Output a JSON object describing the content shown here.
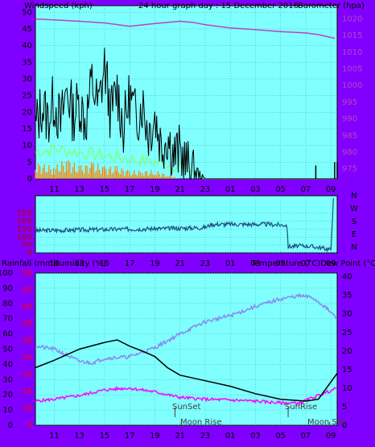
{
  "colors": {
    "frame": "#8000ff",
    "plot_bg": "#80ffff",
    "grid": "#3f9fa8",
    "gust": "#000000",
    "avg_wind": "#80ff80",
    "orange": "#ff8000",
    "pressure": "#c040c0",
    "direction": "#205080",
    "temperature": "#000000",
    "humidity": "#8888ee",
    "dewpoint": "#ff00ff",
    "rain_axis_text": "#ff0000",
    "annotation": "#404040"
  },
  "labels": {
    "top_left": "Windspeed (kph)",
    "top_center": "24 hour graph day : 15 December 2016",
    "top_right": "Barometer (hpa)",
    "bottom_left_1": "Rainfall (mm)",
    "bottom_left_2": "Humidity (%)",
    "bottom_right": "Temperature (°C)Dew Point (°C)",
    "sunset": "SunSet",
    "moonrise": "Moon Rise",
    "sunrise": "SunRise",
    "moonset": "Moon Set"
  },
  "chart_data": [
    {
      "type": "line",
      "title": "24 hour graph day : 15 December 2016",
      "x_ticks": [
        "11",
        "13",
        "15",
        "17",
        "19",
        "21",
        "23",
        "01",
        "03",
        "05",
        "07",
        "09"
      ],
      "x_range_hours": [
        9.5,
        33.5
      ],
      "y_left_label": "Windspeed (kph)",
      "y_left_ticks": [
        0,
        5,
        10,
        15,
        20,
        25,
        30,
        35,
        40,
        45,
        50
      ],
      "y_left_range": [
        0,
        52
      ],
      "y_right_label": "Barometer (hpa)",
      "y_right_ticks": [
        975,
        980,
        985,
        990,
        995,
        1000,
        1005,
        1010,
        1015,
        1020
      ],
      "y_right_range": [
        972,
        1024
      ],
      "series": [
        {
          "key": "pressure",
          "values_hpa": [
            [
              9.5,
              1020
            ],
            [
              11,
              1019.7
            ],
            [
              13,
              1019.3
            ],
            [
              15,
              1018.8
            ],
            [
              17,
              1017.8
            ],
            [
              19,
              1018.6
            ],
            [
              21,
              1019.3
            ],
            [
              22,
              1019.0
            ],
            [
              23,
              1018.3
            ],
            [
              25,
              1017.3
            ],
            [
              27,
              1016.8
            ],
            [
              29,
              1016.2
            ],
            [
              31,
              1015.8
            ],
            [
              32,
              1015.3
            ],
            [
              33.3,
              1014.2
            ]
          ]
        },
        {
          "key": "gust",
          "values_kph": [
            [
              9.5,
              15
            ],
            [
              10,
              22
            ],
            [
              10.5,
              18
            ],
            [
              11,
              24
            ],
            [
              11.5,
              16
            ],
            [
              12,
              27
            ],
            [
              12.5,
              19
            ],
            [
              13,
              23
            ],
            [
              13.5,
              17
            ],
            [
              14,
              29
            ],
            [
              14.5,
              21
            ],
            [
              15,
              34
            ],
            [
              15.5,
              19
            ],
            [
              16,
              27
            ],
            [
              16.5,
              15
            ],
            [
              17,
              25
            ],
            [
              17.5,
              18
            ],
            [
              18,
              23
            ],
            [
              18.5,
              14
            ],
            [
              19,
              19
            ],
            [
              19.5,
              10
            ],
            [
              20,
              13
            ],
            [
              20.5,
              7
            ],
            [
              21,
              8
            ],
            [
              21.5,
              4
            ],
            [
              22,
              3
            ],
            [
              22.5,
              1
            ],
            [
              23,
              0
            ],
            [
              33.5,
              0
            ]
          ]
        },
        {
          "key": "avg_wind",
          "values_kph": [
            [
              9.5,
              8
            ],
            [
              11,
              9
            ],
            [
              13,
              8
            ],
            [
              15,
              7
            ],
            [
              17,
              6
            ],
            [
              19,
              5
            ],
            [
              21,
              4
            ],
            [
              22.5,
              1
            ],
            [
              23,
              0
            ],
            [
              33.5,
              0
            ]
          ]
        },
        {
          "key": "orange_bars",
          "values_kph": [
            [
              9.5,
              4
            ],
            [
              11,
              3
            ],
            [
              12,
              5
            ],
            [
              13,
              3
            ],
            [
              14,
              4
            ],
            [
              15,
              3
            ],
            [
              16,
              3
            ],
            [
              17,
              2
            ],
            [
              18,
              2
            ],
            [
              19,
              2
            ],
            [
              20,
              1
            ],
            [
              21,
              0
            ]
          ]
        },
        {
          "key": "late_gusts",
          "values_kph": [
            [
              31.8,
              4
            ],
            [
              33.3,
              5
            ],
            [
              33.5,
              5
            ]
          ]
        }
      ]
    },
    {
      "type": "line",
      "x_ticks": [
        "11",
        "13",
        "15",
        "17",
        "19",
        "21",
        "23",
        "01",
        "03",
        "05",
        "07",
        "09"
      ],
      "y_left_ticks": [
        0,
        50,
        100,
        150,
        200,
        250
      ],
      "y_left_range": [
        0,
        360
      ],
      "y_right_ticks": [
        "N",
        "W",
        "S",
        "E",
        "N"
      ],
      "series": [
        {
          "key": "direction",
          "values_deg": [
            [
              9.5,
              140
            ],
            [
              13,
              145
            ],
            [
              17,
              150
            ],
            [
              21,
              155
            ],
            [
              23,
              160
            ],
            [
              23.5,
              180
            ],
            [
              28,
              180
            ],
            [
              29.5,
              175
            ],
            [
              29.6,
              40
            ],
            [
              31,
              45
            ],
            [
              32,
              35
            ],
            [
              33,
              20
            ],
            [
              33.2,
              345
            ]
          ]
        }
      ]
    },
    {
      "type": "line",
      "x_ticks": [
        "11",
        "13",
        "15",
        "17",
        "19",
        "21",
        "23",
        "01",
        "03",
        "05",
        "07",
        "09"
      ],
      "y_humidity_ticks": [
        0,
        10,
        20,
        30,
        40,
        50,
        60,
        70,
        80,
        90,
        100
      ],
      "y_rain_ticks": [
        0,
        10,
        15,
        20,
        25,
        30,
        35,
        40,
        45,
        50
      ],
      "y_temp_ticks": [
        0,
        5,
        10,
        15,
        20,
        25,
        30,
        35,
        40
      ],
      "y_temp_range": [
        0,
        41
      ],
      "series": [
        {
          "key": "temperature",
          "values_c": [
            [
              9.5,
              15.5
            ],
            [
              11,
              17.5
            ],
            [
              13,
              20.5
            ],
            [
              15,
              22.3
            ],
            [
              16,
              23
            ],
            [
              17,
              21.3
            ],
            [
              18,
              20
            ],
            [
              19,
              18.5
            ],
            [
              20,
              15.5
            ],
            [
              21,
              13.5
            ],
            [
              23,
              12
            ],
            [
              25,
              10.5
            ],
            [
              27,
              8.5
            ],
            [
              29,
              7
            ],
            [
              31,
              6.5
            ],
            [
              32,
              7
            ],
            [
              33.5,
              14
            ]
          ]
        },
        {
          "key": "humidity",
          "values_pct": [
            [
              9.5,
              52
            ],
            [
              11,
              50
            ],
            [
              13,
              42
            ],
            [
              14,
              41
            ],
            [
              15,
              44
            ],
            [
              17,
              45
            ],
            [
              19,
              51
            ],
            [
              21,
              60
            ],
            [
              23,
              68
            ],
            [
              25,
              72
            ],
            [
              27,
              78
            ],
            [
              29,
              83
            ],
            [
              30.5,
              85
            ],
            [
              31.5,
              84
            ],
            [
              32.5,
              78
            ],
            [
              33.5,
              70
            ]
          ]
        },
        {
          "key": "dewpoint",
          "values_c": [
            [
              9.5,
              6.5
            ],
            [
              11,
              7
            ],
            [
              13,
              8
            ],
            [
              15,
              9.5
            ],
            [
              16,
              9.8
            ],
            [
              17,
              10
            ],
            [
              19,
              9
            ],
            [
              21,
              7.5
            ],
            [
              23,
              7
            ],
            [
              25,
              6.8
            ],
            [
              27,
              6.5
            ],
            [
              29,
              6
            ],
            [
              30.5,
              6
            ],
            [
              32,
              8
            ],
            [
              33.5,
              10
            ]
          ]
        }
      ]
    }
  ]
}
